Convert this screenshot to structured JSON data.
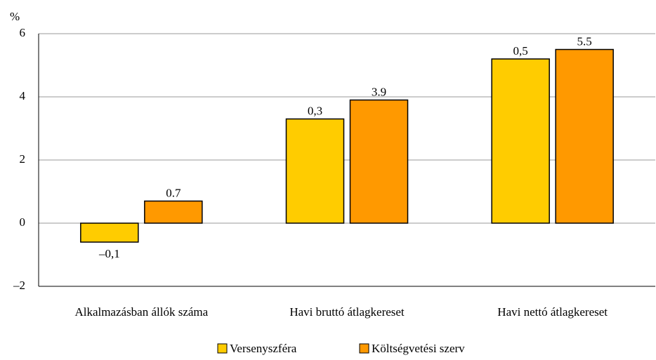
{
  "chart_data": {
    "type": "bar",
    "y_axis_label": "%",
    "categories": [
      "Alkalmazásban állók száma",
      "Havi bruttó átlagkereset",
      "Havi nettó átlagkereset"
    ],
    "series": [
      {
        "name": "Versenyszféra",
        "color": "#ffcc00",
        "values": [
          -0.6,
          3.3,
          5.2
        ],
        "annotations": [
          "–0,1",
          "0,3",
          "0,5"
        ]
      },
      {
        "name": "Költségvetési szerv",
        "color": "#ff9900",
        "values": [
          0.7,
          3.9,
          5.5
        ]
      }
    ],
    "ylim": [
      -2,
      6
    ],
    "yticks": [
      {
        "value": -2,
        "label": "–2"
      },
      0,
      2,
      4,
      6
    ],
    "grid": true,
    "legend": "bottom"
  }
}
